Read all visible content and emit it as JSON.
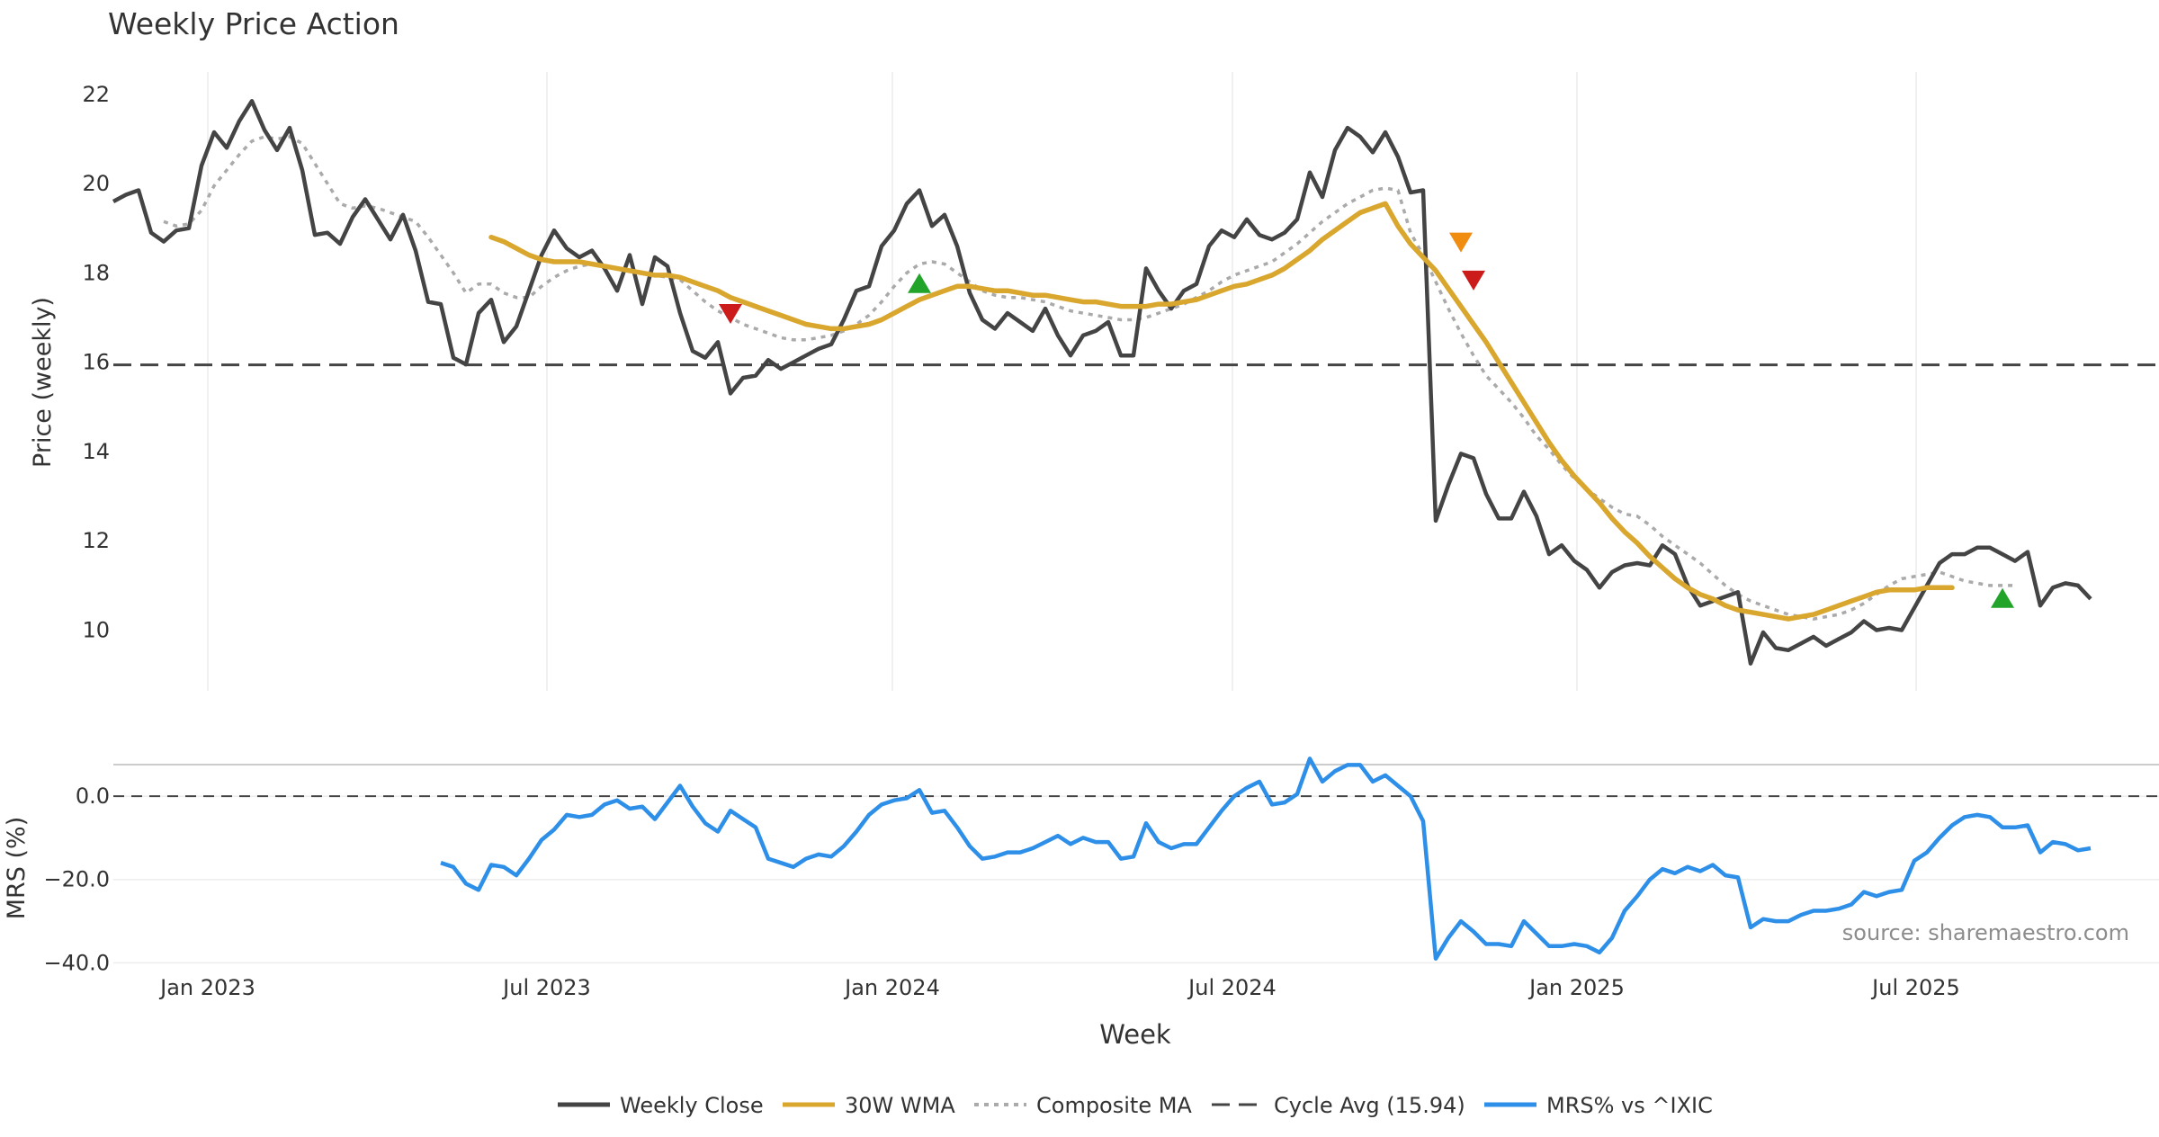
{
  "chart_data": {
    "type": "line",
    "title": "Weekly Price Action",
    "xlabel": "Week",
    "source_note": "source: sharemaestro.com",
    "x_ticks": [
      "Jan 2023",
      "Jul 2023",
      "Jan 2024",
      "Jul 2024",
      "Jan 2025",
      "Jul 2025"
    ],
    "legend_position": "bottom-center",
    "legend": [
      "Weekly Close",
      "30W WMA",
      "Composite MA",
      "Cycle Avg (15.94)",
      "MRS% vs ^IXIC"
    ],
    "colors": {
      "close": "#444444",
      "wma": "#d9a62e",
      "composite": "#aaaaaa",
      "cycle": "#444444",
      "mrs": "#2e8fe8",
      "buy": "#22a32a",
      "sell": "#cc1b1b",
      "warn": "#f08c10"
    },
    "price_panel": {
      "ylabel": "Price (weekly)",
      "yticks": [
        10,
        12,
        14,
        16,
        18,
        20,
        22
      ],
      "ylim": [
        8.6,
        22.5
      ],
      "cycle_avg": 15.94,
      "series": [
        {
          "name": "Weekly Close",
          "start_week": 0,
          "values": [
            19.6,
            19.75,
            19.85,
            18.9,
            18.7,
            18.95,
            19.0,
            20.4,
            21.15,
            20.8,
            21.4,
            21.85,
            21.2,
            20.75,
            21.25,
            20.3,
            18.85,
            18.9,
            18.65,
            19.25,
            19.65,
            19.2,
            18.75,
            19.3,
            18.5,
            17.35,
            17.3,
            16.1,
            15.95,
            17.1,
            17.4,
            16.45,
            16.8,
            17.6,
            18.4,
            18.95,
            18.55,
            18.35,
            18.5,
            18.1,
            17.6,
            18.4,
            17.3,
            18.35,
            18.15,
            17.1,
            16.25,
            16.1,
            16.45,
            15.3,
            15.65,
            15.7,
            16.05,
            15.85,
            16.0,
            16.15,
            16.3,
            16.4,
            16.95,
            17.6,
            17.7,
            18.6,
            18.95,
            19.55,
            19.85,
            19.05,
            19.3,
            18.6,
            17.55,
            16.95,
            16.75,
            17.1,
            16.9,
            16.7,
            17.2,
            16.6,
            16.15,
            16.6,
            16.7,
            16.9,
            16.15,
            16.15,
            18.1,
            17.6,
            17.2,
            17.6,
            17.75,
            18.6,
            18.95,
            18.8,
            19.2,
            18.85,
            18.75,
            18.9,
            19.2,
            20.25,
            19.7,
            20.75,
            21.25,
            21.05,
            20.7,
            21.15,
            20.6,
            19.8,
            19.85,
            12.45,
            13.25,
            13.95,
            13.85,
            13.05,
            12.5,
            12.5,
            13.1,
            12.55,
            11.7,
            11.9,
            11.55,
            11.35,
            10.95,
            11.3,
            11.45,
            11.5,
            11.45,
            11.9,
            11.7,
            11.0,
            10.55,
            10.65,
            10.75,
            10.85,
            9.25,
            9.95,
            9.6,
            9.55,
            9.7,
            9.85,
            9.65,
            9.8,
            9.95,
            10.2,
            10.0,
            10.05,
            10.0,
            10.5,
            11.0,
            11.5,
            11.7,
            11.7,
            11.85,
            11.85,
            11.7,
            11.55,
            11.75,
            10.55,
            10.95,
            11.05,
            11.0,
            10.7
          ]
        },
        {
          "name": "30W WMA",
          "start_week": 30,
          "values": [
            18.8,
            18.7,
            18.55,
            18.4,
            18.3,
            18.25,
            18.25,
            18.25,
            18.2,
            18.15,
            18.1,
            18.05,
            18.0,
            17.95,
            17.95,
            17.9,
            17.8,
            17.7,
            17.6,
            17.45,
            17.35,
            17.25,
            17.15,
            17.05,
            16.95,
            16.85,
            16.8,
            16.75,
            16.75,
            16.8,
            16.85,
            16.95,
            17.1,
            17.25,
            17.4,
            17.5,
            17.6,
            17.7,
            17.7,
            17.65,
            17.6,
            17.6,
            17.55,
            17.5,
            17.5,
            17.45,
            17.4,
            17.35,
            17.35,
            17.3,
            17.25,
            17.25,
            17.25,
            17.3,
            17.3,
            17.35,
            17.4,
            17.5,
            17.6,
            17.7,
            17.75,
            17.85,
            17.95,
            18.1,
            18.3,
            18.5,
            18.75,
            18.95,
            19.15,
            19.35,
            19.45,
            19.55,
            19.05,
            18.65,
            18.35,
            18.05,
            17.65,
            17.25,
            16.85,
            16.45,
            16.0,
            15.55,
            15.1,
            14.65,
            14.2,
            13.8,
            13.45,
            13.15,
            12.85,
            12.5,
            12.2,
            11.95,
            11.65,
            11.4,
            11.15,
            10.95,
            10.8,
            10.7,
            10.55,
            10.45,
            10.4,
            10.35,
            10.3,
            10.25,
            10.3,
            10.35,
            10.45,
            10.55,
            10.65,
            10.75,
            10.85,
            10.9,
            10.9,
            10.9,
            10.95,
            10.95,
            10.95
          ]
        },
        {
          "name": "Composite MA",
          "start_week": 4,
          "values": [
            19.15,
            19.05,
            19.1,
            19.4,
            19.95,
            20.3,
            20.65,
            20.95,
            21.05,
            21.0,
            21.05,
            20.9,
            20.45,
            20.0,
            19.55,
            19.45,
            19.5,
            19.45,
            19.35,
            19.25,
            19.15,
            18.8,
            18.4,
            18.0,
            17.55,
            17.75,
            17.75,
            17.55,
            17.45,
            17.45,
            17.7,
            17.9,
            18.05,
            18.15,
            18.2,
            18.15,
            18.1,
            18.05,
            18.0,
            17.95,
            17.9,
            17.85,
            17.6,
            17.35,
            17.15,
            17.0,
            16.85,
            16.75,
            16.65,
            16.55,
            16.5,
            16.5,
            16.55,
            16.6,
            16.7,
            16.85,
            17.05,
            17.35,
            17.7,
            18.0,
            18.2,
            18.25,
            18.2,
            18.0,
            17.8,
            17.6,
            17.5,
            17.45,
            17.45,
            17.4,
            17.35,
            17.25,
            17.15,
            17.1,
            17.05,
            17.0,
            16.95,
            16.95,
            17.0,
            17.1,
            17.2,
            17.3,
            17.45,
            17.6,
            17.8,
            17.95,
            18.05,
            18.15,
            18.25,
            18.45,
            18.65,
            18.9,
            19.15,
            19.35,
            19.55,
            19.7,
            19.85,
            19.9,
            19.85,
            18.9,
            18.4,
            17.8,
            17.2,
            16.65,
            16.15,
            15.7,
            15.4,
            15.1,
            14.75,
            14.35,
            14.05,
            13.7,
            13.4,
            13.15,
            12.95,
            12.75,
            12.6,
            12.55,
            12.35,
            12.1,
            11.9,
            11.7,
            11.5,
            11.25,
            11.0,
            10.8,
            10.65,
            10.55,
            10.45,
            10.35,
            10.3,
            10.25,
            10.3,
            10.35,
            10.45,
            10.6,
            10.8,
            11.0,
            11.15,
            11.2,
            11.25,
            11.3,
            11.2,
            11.1,
            11.05,
            11.0,
            11.0,
            11.0
          ]
        }
      ],
      "markers": [
        {
          "type": "sell",
          "week": 49,
          "value": 17.1
        },
        {
          "type": "buy",
          "week": 64,
          "value": 17.75
        },
        {
          "type": "warn",
          "week": 107,
          "value": 18.7
        },
        {
          "type": "sell",
          "week": 108,
          "value": 17.85
        },
        {
          "type": "buy",
          "week": 150,
          "value": 10.7
        }
      ]
    },
    "mrs_panel": {
      "ylabel": "MRS (%)",
      "yticks": [
        0.0,
        -20.0,
        -40.0
      ],
      "ytick_labels": [
        "0.0",
        "−20.0",
        "−40.0"
      ],
      "ylim": [
        -41,
        6.5
      ],
      "zero_line": 0.0,
      "series": [
        {
          "name": "MRS% vs ^IXIC",
          "start_week": 26,
          "values": [
            -16,
            -17,
            -21,
            -22.5,
            -16.5,
            -17,
            -19,
            -15,
            -10.5,
            -8,
            -4.5,
            -5,
            -4.5,
            -2,
            -1,
            -3,
            -2.5,
            -5.5,
            -1.5,
            2.5,
            -2.5,
            -6.5,
            -8.5,
            -3.5,
            -5.5,
            -7.5,
            -15,
            -16,
            -17,
            -15,
            -14,
            -14.5,
            -12,
            -8.5,
            -4.5,
            -2,
            -1,
            -0.5,
            1.5,
            -4,
            -3.5,
            -7.5,
            -12,
            -15,
            -14.5,
            -13.5,
            -13.5,
            -12.5,
            -11,
            -9.5,
            -11.5,
            -10,
            -11,
            -11,
            -15,
            -14.5,
            -6.5,
            -11,
            -12.5,
            -11.5,
            -11.5,
            -7.5,
            -3.5,
            0,
            2,
            3.5,
            -2,
            -1.5,
            0.5,
            9,
            3.5,
            6,
            7.5,
            7.5,
            3.5,
            5,
            2.5,
            0,
            -6,
            -39,
            -34,
            -30,
            -32.5,
            -35.5,
            -35.5,
            -36,
            -30,
            -33,
            -36,
            -36,
            -35.5,
            -36,
            -37.5,
            -34,
            -27.5,
            -24,
            -20,
            -17.5,
            -18.5,
            -17,
            -18,
            -16.5,
            -19,
            -19.5,
            -31.5,
            -29.5,
            -30,
            -30,
            -28.5,
            -27.5,
            -27.5,
            -27,
            -26,
            -23,
            -24,
            -23,
            -22.5,
            -15.5,
            -13.5,
            -10,
            -7,
            -5,
            -4.5,
            -5,
            -7.5,
            -7.5,
            -7,
            -13.5,
            -11,
            -11.5,
            -13,
            -12.5
          ]
        }
      ]
    }
  }
}
